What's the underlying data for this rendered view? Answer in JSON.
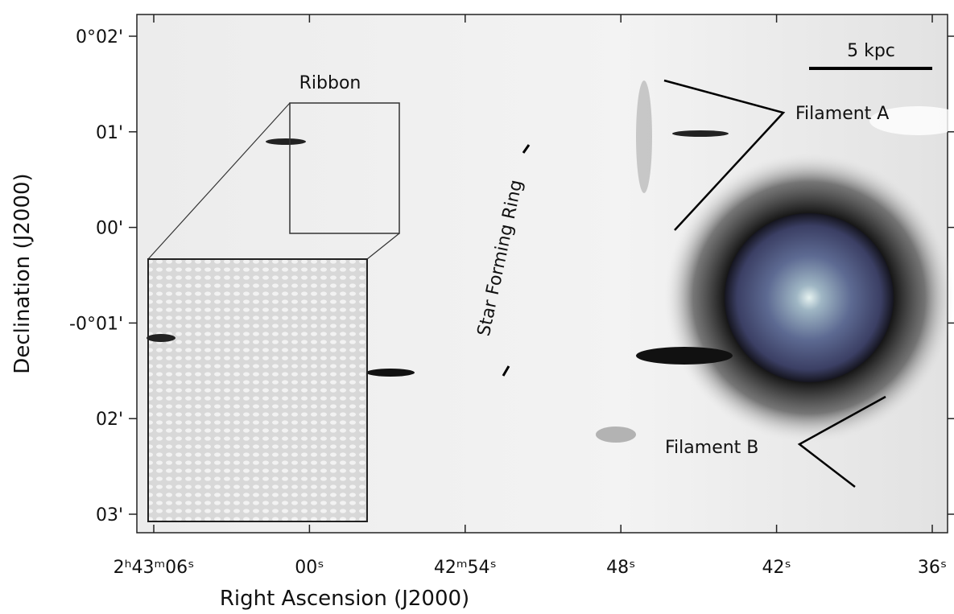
{
  "figure": {
    "x_axis": {
      "label": "Right Ascension (J2000)",
      "ticks": [
        "2ʰ43ᵐ06ˢ",
        "00ˢ",
        "42ᵐ54ˢ",
        "48ˢ",
        "42ˢ",
        "36ˢ"
      ]
    },
    "y_axis": {
      "label": "Declination (J2000)",
      "ticks": [
        "0°02'",
        "01'",
        "00'",
        "-0°01'",
        "02'",
        "03'"
      ]
    },
    "annotations": {
      "ribbon": "Ribbon",
      "filament_a": "Filament A",
      "filament_b": "Filament B",
      "ring": "Star Forming Ring",
      "scale_bar": "5 kpc"
    }
  }
}
